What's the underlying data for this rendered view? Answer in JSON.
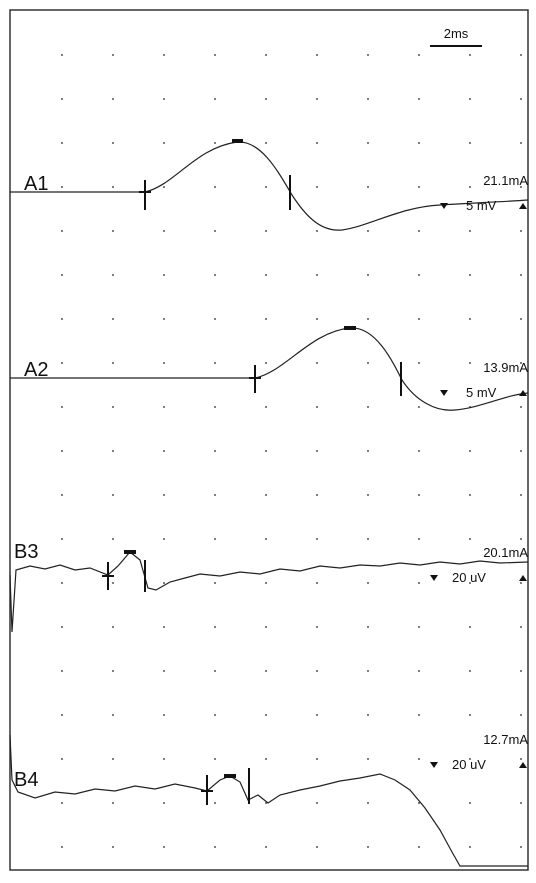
{
  "scale_bar": "2ms",
  "traces": [
    {
      "label": "A1",
      "stimulus": "21.1mA",
      "sensitivity": "5 mV"
    },
    {
      "label": "A2",
      "stimulus": "13.9mA",
      "sensitivity": "5 mV"
    },
    {
      "label": "B3",
      "stimulus": "20.1mA",
      "sensitivity": "20 uV"
    },
    {
      "label": "B4",
      "stimulus": "12.7mA",
      "sensitivity": "20 uV"
    }
  ]
}
